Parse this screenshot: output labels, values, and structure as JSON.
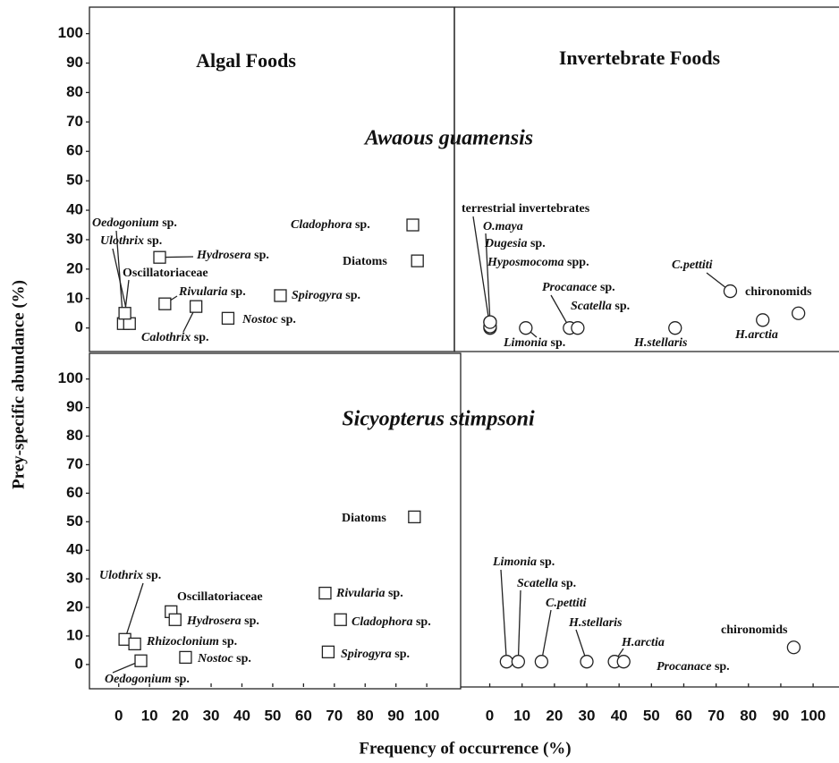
{
  "axis_labels": {
    "y": "Prey-specific abundance (%)",
    "x": "Frequency of occurrence (%)"
  },
  "chart_data": [
    {
      "type": "scatter",
      "marker": "square",
      "title": "Algal Foods",
      "subtitle": "Awaous guamensis",
      "labels": [
        "Oedogonium sp.",
        "Ulothrix sp.",
        "Oscillatoriaceae",
        "Hydrosera sp.",
        "Rivularia sp.",
        "Calothrix sp.",
        "Nostoc sp.",
        "Spirogyra sp.",
        "Cladophora sp.",
        "Diatoms"
      ],
      "x": [
        1,
        3,
        1.5,
        12.8,
        14.5,
        24.6,
        35,
        52,
        95,
        96.5
      ],
      "values": [
        1.5,
        1.5,
        5,
        24,
        8.2,
        7.3,
        3.3,
        11,
        35,
        22.8
      ],
      "xlim": [
        -10,
        108.5
      ],
      "ylim": [
        -8,
        109
      ],
      "yticks": [
        0,
        10,
        20,
        30,
        40,
        50,
        60,
        70,
        80,
        90,
        100
      ]
    },
    {
      "type": "scatter",
      "marker": "circle",
      "title": "Invertebrate Foods",
      "labels": [
        "terrestrial invertebrates",
        "O.maya",
        "Dugesia sp.",
        "Hyposmocoma spp.",
        "Limonia sp.",
        "Procanace sp.",
        "Scatella sp.",
        "H.stellaris",
        "C.pettiti",
        "H.arctia",
        "chironomids"
      ],
      "x": [
        0,
        0,
        0,
        0,
        11,
        24.5,
        27,
        57,
        74,
        84,
        95
      ],
      "values": [
        0,
        2,
        0.5,
        2,
        0,
        0,
        0,
        0,
        12.5,
        2.7,
        5
      ],
      "xlim": [
        -11,
        107.5
      ],
      "ylim": [
        -8,
        109
      ]
    },
    {
      "type": "scatter",
      "marker": "square",
      "subtitle": "Sicyopterus stimpsoni",
      "labels": [
        "Ulothrix sp.",
        "Rhizoclonium sp.",
        "Oscillatoriaceae",
        "Hydrosera sp.",
        "Oedogonium sp.",
        "Nostoc sp.",
        "Rivularia sp.",
        "Cladophora sp.",
        "Spirogyra sp.",
        "Diatoms"
      ],
      "x": [
        2,
        5.2,
        17,
        18.3,
        7.2,
        21.7,
        67,
        72,
        68,
        96
      ],
      "values": [
        8.8,
        7.2,
        18.5,
        15.7,
        1.3,
        2.5,
        25,
        15.7,
        4.4,
        51.7
      ],
      "xlim": [
        -9.5,
        111
      ],
      "ylim": [
        -8.5,
        109
      ],
      "yticks": [
        0,
        10,
        20,
        30,
        40,
        50,
        60,
        70,
        80,
        90,
        100
      ],
      "xticks": [
        0,
        10,
        20,
        30,
        40,
        50,
        60,
        70,
        80,
        90,
        100
      ]
    },
    {
      "type": "scatter",
      "marker": "circle",
      "labels": [
        "Limonia sp.",
        "Scatella sp.",
        "C.pettiti",
        "H.stellaris",
        "H.arctia",
        "Procanace sp.",
        "chironomids"
      ],
      "x": [
        5.2,
        8.8,
        16,
        30,
        38.6,
        41.4,
        94
      ],
      "values": [
        1,
        1,
        1,
        1,
        1,
        1,
        6
      ],
      "xlim": [
        -9,
        108
      ],
      "ylim": [
        -8.5,
        109
      ],
      "xticks": [
        0,
        10,
        20,
        30,
        40,
        50,
        60,
        70,
        80,
        90,
        100
      ]
    }
  ]
}
